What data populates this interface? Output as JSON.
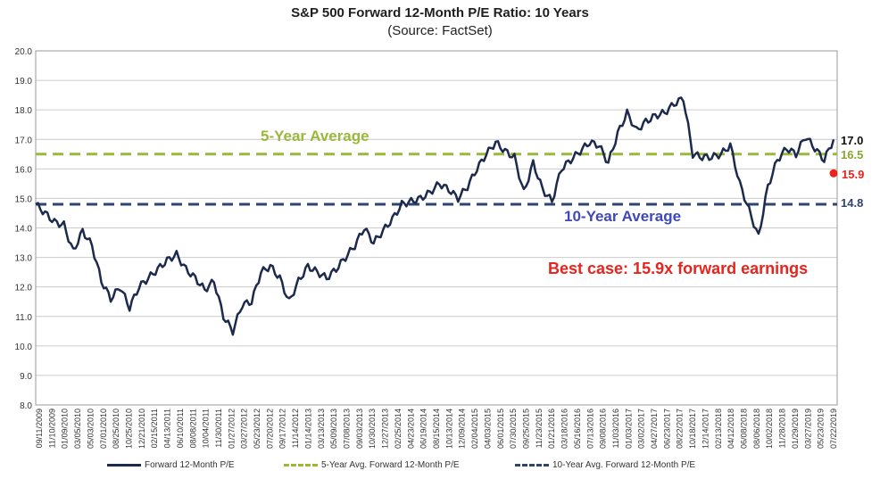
{
  "chart_data": {
    "type": "line",
    "title": "S&P 500 Forward 12-Month P/E Ratio: 10 Years",
    "subtitle": "(Source: FactSet)",
    "ylim": [
      8.0,
      20.0
    ],
    "yticks": [
      "8.0",
      "9.0",
      "10.0",
      "11.0",
      "12.0",
      "13.0",
      "14.0",
      "15.0",
      "16.0",
      "17.0",
      "18.0",
      "19.0",
      "20.0"
    ],
    "xticks": [
      "09/11/2009",
      "11/10/2009",
      "01/09/2010",
      "03/05/2010",
      "05/03/2010",
      "07/01/2010",
      "08/25/2010",
      "10/25/2010",
      "12/21/2010",
      "02/15/2011",
      "04/13/2011",
      "06/10/2011",
      "08/08/2011",
      "10/04/2011",
      "11/30/2011",
      "01/27/2012",
      "03/27/2012",
      "05/23/2012",
      "07/20/2012",
      "09/17/2012",
      "11/14/2012",
      "01/14/2013",
      "03/13/2013",
      "05/09/2013",
      "07/08/2013",
      "09/03/2013",
      "10/30/2013",
      "12/27/2013",
      "02/25/2014",
      "04/23/2014",
      "06/19/2014",
      "08/15/2014",
      "10/13/2014",
      "12/09/2014",
      "02/04/2015",
      "04/03/2015",
      "06/01/2015",
      "07/30/2015",
      "09/25/2015",
      "11/23/2015",
      "01/21/2016",
      "03/18/2016",
      "05/16/2016",
      "07/13/2016",
      "09/08/2016",
      "11/03/2016",
      "01/03/2017",
      "03/02/2017",
      "04/27/2017",
      "06/23/2017",
      "08/22/2017",
      "10/18/2017",
      "12/14/2017",
      "02/13/2018",
      "04/12/2018",
      "06/08/2018",
      "08/06/2018",
      "10/02/2018",
      "11/28/2018",
      "01/29/2019",
      "03/27/2019",
      "05/23/2019",
      "07/22/2019"
    ],
    "series": [
      {
        "name": "Forward 12-Month P/E",
        "color": "#1c2a4d",
        "values": [
          14.8,
          14.5,
          14.2,
          14.1,
          13.2,
          13.9,
          13.4,
          12.2,
          11.6,
          12.0,
          11.3,
          12.0,
          12.3,
          12.6,
          12.9,
          13.1,
          12.6,
          12.3,
          11.9,
          12.2,
          11.0,
          10.5,
          11.4,
          11.5,
          12.5,
          12.7,
          12.3,
          11.5,
          12.2,
          12.7,
          12.5,
          12.3,
          12.6,
          13.0,
          13.4,
          14.0,
          13.5,
          13.9,
          14.3,
          14.8,
          14.9,
          15.0,
          15.2,
          15.5,
          15.3,
          15.0,
          15.4,
          16.0,
          16.5,
          16.9,
          16.6,
          16.4,
          15.2,
          16.2,
          15.3,
          14.9,
          16.0,
          16.3,
          16.6,
          16.9,
          16.8,
          16.2,
          17.2,
          17.9,
          17.3,
          17.6,
          17.8,
          17.9,
          18.2,
          18.4,
          16.5,
          16.4,
          16.4,
          16.5,
          16.8,
          15.5,
          14.6,
          13.7,
          15.4,
          16.3,
          16.7,
          16.5,
          17.1,
          16.7,
          16.3,
          17.0
        ]
      },
      {
        "name": "5-Year Avg. Forward 12-Month P/E",
        "color": "#9ab83a",
        "dash": true,
        "value": 16.5
      },
      {
        "name": "10-Year Avg. Forward 12-Month P/E",
        "color": "#2e4472",
        "dash": true,
        "value": 14.8
      }
    ],
    "annotations": {
      "five_year_label": "5-Year Average",
      "ten_year_label": "10-Year Average",
      "best_case_label": "Best case: 15.9x forward earnings",
      "current_value": "17.0",
      "five_year_value": "16.5",
      "ten_year_value": "14.8",
      "best_case_value": "15.9",
      "best_case_point": 15.85
    },
    "colors": {
      "pe": "#1c2a4d",
      "five_year": "#9ab83a",
      "ten_year": "#2e4472",
      "ten_year_text": "#3f48b8",
      "best": "#e8241c",
      "grid": "#cccccc"
    }
  }
}
